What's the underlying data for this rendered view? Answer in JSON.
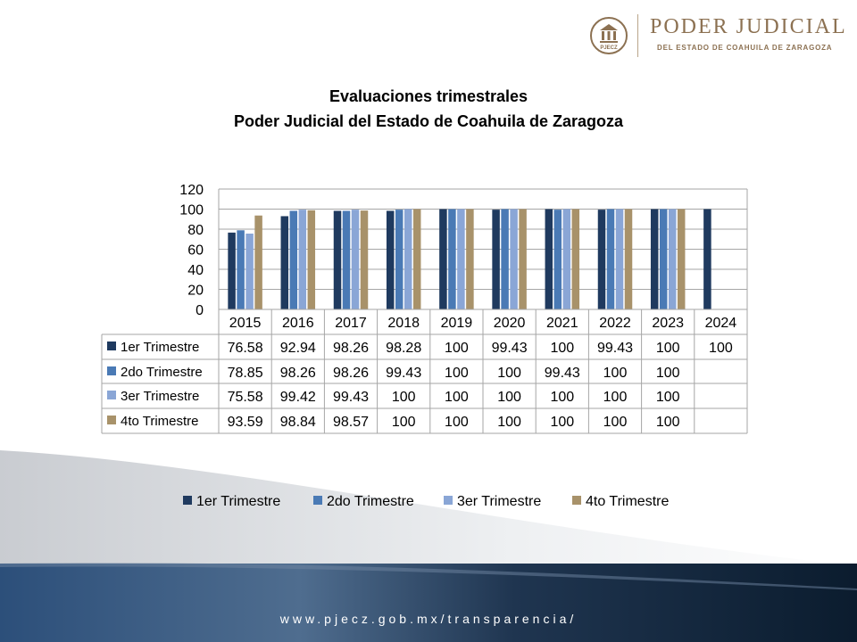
{
  "logo": {
    "seal_text": "PJECZ",
    "name": "PODER JUDICIAL",
    "subtitle": "DEL ESTADO DE COAHUILA DE ZARAGOZA"
  },
  "footer": {
    "url": "www.pjecz.gob.mx/transparencia/"
  },
  "colors": {
    "series": [
      "#1f3a5f",
      "#4a7ab5",
      "#8aa6d6",
      "#a8926a"
    ],
    "footer_dark": "#0f2337",
    "brand": "#8c7152"
  },
  "chart_data": {
    "type": "bar",
    "title": "Evaluaciones trimestrales",
    "subtitle": "Poder Judicial del Estado de Coahuila de Zaragoza",
    "categories": [
      "2015",
      "2016",
      "2017",
      "2018",
      "2019",
      "2020",
      "2021",
      "2022",
      "2023",
      "2024"
    ],
    "y_ticks": [
      "0",
      "20",
      "40",
      "60",
      "80",
      "100",
      "120"
    ],
    "ylim": [
      0,
      120
    ],
    "grid": true,
    "data_table": true,
    "legend_position": "bottom",
    "series": [
      {
        "name": "1er Trimestre",
        "values": [
          76.58,
          92.94,
          98.26,
          98.28,
          100,
          99.43,
          100,
          99.43,
          100,
          100
        ],
        "labels": [
          "76.58",
          "92.94",
          "98.26",
          "98.28",
          "100",
          "99.43",
          "100",
          "99.43",
          "100",
          "100"
        ]
      },
      {
        "name": "2do Trimestre",
        "values": [
          78.85,
          98.26,
          98.26,
          99.43,
          100,
          100,
          99.43,
          100,
          100,
          null
        ],
        "labels": [
          "78.85",
          "98.26",
          "98.26",
          "99.43",
          "100",
          "100",
          "99.43",
          "100",
          "100",
          ""
        ]
      },
      {
        "name": "3er Trimestre",
        "values": [
          75.58,
          99.42,
          99.43,
          100,
          100,
          100,
          100,
          100,
          100,
          null
        ],
        "labels": [
          "75.58",
          "99.42",
          "99.43",
          "100",
          "100",
          "100",
          "100",
          "100",
          "100",
          ""
        ]
      },
      {
        "name": "4to Trimestre",
        "values": [
          93.59,
          98.84,
          98.57,
          100,
          100,
          100,
          100,
          100,
          100,
          null
        ],
        "labels": [
          "93.59",
          "98.84",
          "98.57",
          "100",
          "100",
          "100",
          "100",
          "100",
          "100",
          ""
        ]
      }
    ]
  }
}
